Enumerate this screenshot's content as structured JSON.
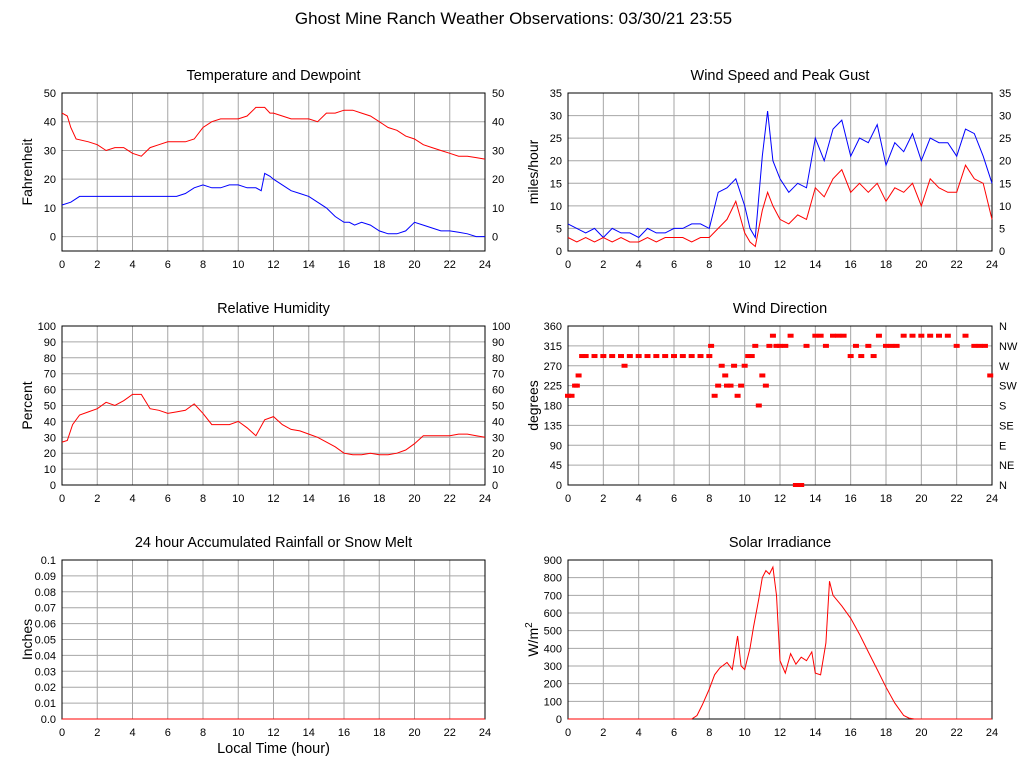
{
  "title": "Ghost Mine Ranch Weather Observations: 03/30/21 23:55",
  "colors": {
    "primary": "#ff0000",
    "secondary": "#0000ff",
    "grid": "#a6a6a6",
    "axis": "#000000"
  },
  "shared_x_ticks": [
    "0",
    "2",
    "4",
    "6",
    "8",
    "10",
    "12",
    "14",
    "16",
    "18",
    "20",
    "22",
    "24"
  ],
  "chart_data": [
    {
      "id": "temperature",
      "type": "line",
      "title": "Temperature and Dewpoint",
      "xlabel": "",
      "ylabel": "Fahrenheit",
      "xlim": [
        0,
        24
      ],
      "ylim": [
        -5,
        50
      ],
      "yticks": [
        "0",
        "10",
        "20",
        "30",
        "40",
        "50"
      ],
      "right_ticks": [
        "0",
        "10",
        "20",
        "30",
        "40",
        "50"
      ],
      "grid": true,
      "series": [
        {
          "color": "#ff0000",
          "x": [
            0,
            0.3,
            0.5,
            0.8,
            1.5,
            2,
            2.5,
            3,
            3.5,
            4,
            4.5,
            5,
            5.5,
            6,
            6.5,
            7,
            7.5,
            8,
            8.5,
            9,
            9.5,
            10,
            10.5,
            11,
            11.5,
            11.8,
            12,
            12.5,
            13,
            13.5,
            14,
            14.5,
            15,
            15.5,
            16,
            16.5,
            17,
            17.5,
            18,
            18.5,
            19,
            19.5,
            20,
            20.5,
            21,
            21.5,
            22,
            22.5,
            23,
            23.5,
            24
          ],
          "y": [
            43,
            42,
            38,
            34,
            33,
            32,
            30,
            31,
            31,
            29,
            28,
            31,
            32,
            33,
            33,
            33,
            34,
            38,
            40,
            41,
            41,
            41,
            42,
            45,
            45,
            43,
            43,
            42,
            41,
            41,
            41,
            40,
            43,
            43,
            44,
            44,
            43,
            42,
            40,
            38,
            37,
            35,
            34,
            32,
            31,
            30,
            29,
            28,
            28,
            27.5,
            27
          ]
        },
        {
          "color": "#0000ff",
          "x": [
            0,
            0.5,
            1,
            1.5,
            2,
            2.5,
            3,
            3.5,
            4,
            4.5,
            5,
            5.5,
            6,
            6.5,
            7,
            7.5,
            8,
            8.5,
            9,
            9.5,
            10,
            10.5,
            11,
            11.3,
            11.5,
            11.8,
            12,
            12.5,
            13,
            13.5,
            14,
            14.5,
            15,
            15.5,
            16,
            16.3,
            16.6,
            17,
            17.5,
            18,
            18.5,
            19,
            19.5,
            20,
            20.5,
            21,
            21.5,
            22,
            22.5,
            23,
            23.5,
            24
          ],
          "y": [
            11,
            12,
            14,
            14,
            14,
            14,
            14,
            14,
            14,
            14,
            14,
            14,
            14,
            14,
            15,
            17,
            18,
            17,
            17,
            18,
            18,
            17,
            17,
            16,
            22,
            21,
            20,
            18,
            16,
            15,
            14,
            12,
            10,
            7,
            5,
            5,
            4,
            5,
            4,
            2,
            1,
            1,
            2,
            5,
            4,
            3,
            2,
            2,
            1.5,
            1,
            0,
            0
          ]
        }
      ]
    },
    {
      "id": "wind-speed",
      "type": "line",
      "title": "Wind Speed and Peak Gust",
      "xlabel": "",
      "ylabel": "miles/hour",
      "xlim": [
        0,
        24
      ],
      "ylim": [
        0,
        35
      ],
      "yticks": [
        "0",
        "5",
        "10",
        "15",
        "20",
        "25",
        "30",
        "35"
      ],
      "right_ticks": [
        "0",
        "5",
        "10",
        "15",
        "20",
        "25",
        "30",
        "35"
      ],
      "grid": true,
      "series": [
        {
          "color": "#0000ff",
          "x": [
            0,
            0.5,
            1,
            1.5,
            2,
            2.5,
            3,
            3.5,
            4,
            4.5,
            5,
            5.5,
            6,
            6.5,
            7,
            7.5,
            8,
            8.5,
            9,
            9.5,
            10,
            10.3,
            10.6,
            11,
            11.3,
            11.6,
            12,
            12.5,
            13,
            13.5,
            14,
            14.5,
            15,
            15.5,
            16,
            16.5,
            17,
            17.5,
            18,
            18.5,
            19,
            19.5,
            20,
            20.5,
            21,
            21.5,
            22,
            22.5,
            23,
            23.5,
            24
          ],
          "y": [
            6,
            5,
            4,
            5,
            3,
            5,
            4,
            4,
            3,
            5,
            4,
            4,
            5,
            5,
            6,
            6,
            5,
            13,
            14,
            16,
            10,
            5,
            3,
            21,
            31,
            20,
            16,
            13,
            15,
            14,
            25,
            20,
            27,
            29,
            21,
            25,
            24,
            28,
            19,
            24,
            22,
            26,
            20,
            25,
            24,
            24,
            21,
            27,
            26,
            21,
            15
          ]
        },
        {
          "color": "#ff0000",
          "x": [
            0,
            0.5,
            1,
            1.5,
            2,
            2.5,
            3,
            3.5,
            4,
            4.5,
            5,
            5.5,
            6,
            6.5,
            7,
            7.5,
            8,
            8.5,
            9,
            9.5,
            10,
            10.3,
            10.6,
            11,
            11.3,
            11.6,
            12,
            12.5,
            13,
            13.5,
            14,
            14.5,
            15,
            15.5,
            16,
            16.5,
            17,
            17.5,
            18,
            18.5,
            19,
            19.5,
            20,
            20.5,
            21,
            21.5,
            22,
            22.5,
            23,
            23.5,
            24
          ],
          "y": [
            3,
            2,
            3,
            2,
            3,
            2,
            3,
            2,
            2,
            3,
            2,
            3,
            3,
            3,
            2,
            3,
            3,
            5,
            7,
            11,
            4,
            2,
            1,
            9,
            13,
            10,
            7,
            6,
            8,
            7,
            14,
            12,
            16,
            18,
            13,
            15,
            13,
            15,
            11,
            14,
            13,
            15,
            10,
            16,
            14,
            13,
            13,
            19,
            16,
            15,
            7
          ]
        }
      ]
    },
    {
      "id": "humidity",
      "type": "line",
      "title": "Relative Humidity",
      "xlabel": "",
      "ylabel": "Percent",
      "xlim": [
        0,
        24
      ],
      "ylim": [
        0,
        100
      ],
      "yticks": [
        "0",
        "10",
        "20",
        "30",
        "40",
        "50",
        "60",
        "70",
        "80",
        "90",
        "100"
      ],
      "right_ticks": [
        "0",
        "10",
        "20",
        "30",
        "40",
        "50",
        "60",
        "70",
        "80",
        "90",
        "100"
      ],
      "grid": true,
      "series": [
        {
          "color": "#ff0000",
          "x": [
            0,
            0.3,
            0.6,
            1,
            1.5,
            2,
            2.5,
            3,
            3.5,
            4,
            4.5,
            5,
            5.5,
            6,
            6.5,
            7,
            7.5,
            8,
            8.5,
            9,
            9.5,
            10,
            10.5,
            11,
            11.5,
            12,
            12.5,
            13,
            13.5,
            14,
            14.5,
            15,
            15.5,
            16,
            16.5,
            17,
            17.5,
            18,
            18.5,
            19,
            19.5,
            20,
            20.5,
            21,
            21.5,
            22,
            22.5,
            23,
            23.5,
            24
          ],
          "y": [
            27,
            28,
            38,
            44,
            46,
            48,
            52,
            50,
            53,
            57,
            57,
            48,
            47,
            45,
            46,
            47,
            51,
            45,
            38,
            38,
            38,
            40,
            36,
            31,
            41,
            43,
            38,
            35,
            34,
            32,
            30,
            27,
            24,
            20,
            19,
            19,
            20,
            19,
            19,
            20,
            22,
            26,
            31,
            31,
            31,
            31,
            32,
            32,
            31,
            30
          ]
        }
      ]
    },
    {
      "id": "wind-direction",
      "type": "scatter",
      "title": "Wind Direction",
      "xlabel": "",
      "ylabel": "degrees",
      "xlim": [
        0,
        24
      ],
      "ylim": [
        0,
        360
      ],
      "yticks": [
        "0",
        "45",
        "90",
        "135",
        "180",
        "225",
        "270",
        "315",
        "360"
      ],
      "right_ticks": [
        "N",
        "NE",
        "E",
        "SE",
        "S",
        "SW",
        "W",
        "NW",
        "N"
      ],
      "grid": true,
      "series": [
        {
          "color": "#ff0000",
          "x": [
            0,
            0.2,
            0.4,
            0.5,
            0.6,
            0.8,
            1,
            1.5,
            2,
            2.5,
            3,
            3.2,
            3.5,
            4,
            4.5,
            5,
            5.5,
            6,
            6.5,
            7,
            7.5,
            8,
            8.1,
            8.3,
            8.5,
            8.7,
            8.9,
            9.0,
            9.2,
            9.4,
            9.6,
            9.8,
            10.0,
            10.2,
            10.4,
            10.6,
            10.8,
            11.0,
            11.2,
            11.4,
            11.6,
            11.8,
            12.0,
            12.3,
            12.6,
            12.9,
            13.0,
            13.2,
            13.5,
            14.0,
            14.3,
            14.6,
            15.0,
            15.3,
            15.6,
            16.0,
            16.3,
            16.6,
            17.0,
            17.3,
            17.6,
            18.0,
            18.3,
            18.6,
            19.0,
            19.5,
            20.0,
            20.5,
            21.0,
            21.5,
            22.0,
            22.5,
            23.0,
            23.3,
            23.6,
            23.9
          ],
          "y": [
            202,
            202,
            225,
            225,
            248,
            292,
            292,
            292,
            292,
            292,
            292,
            270,
            292,
            292,
            292,
            292,
            292,
            292,
            292,
            292,
            292,
            292,
            315,
            202,
            225,
            270,
            248,
            225,
            225,
            270,
            202,
            225,
            270,
            292,
            292,
            315,
            180,
            248,
            225,
            315,
            338,
            315,
            315,
            315,
            338,
            0,
            0,
            0,
            315,
            338,
            338,
            315,
            338,
            338,
            338,
            292,
            315,
            292,
            315,
            292,
            338,
            315,
            315,
            315,
            338,
            338,
            338,
            338,
            338,
            338,
            315,
            338,
            315,
            315,
            315,
            248
          ]
        }
      ]
    },
    {
      "id": "rainfall",
      "type": "line",
      "title": "24 hour Accumulated Rainfall or Snow Melt",
      "xlabel": "Local Time (hour)",
      "ylabel": "Inches",
      "xlim": [
        0,
        24
      ],
      "ylim": [
        0,
        0.1
      ],
      "yticks": [
        "0.0",
        "0.01",
        "0.02",
        "0.03",
        "0.04",
        "0.05",
        "0.06",
        "0.07",
        "0.08",
        "0.09",
        "0.1"
      ],
      "right_ticks": [],
      "grid": true,
      "series": [
        {
          "color": "#ff0000",
          "x": [
            0,
            24
          ],
          "y": [
            0,
            0
          ]
        }
      ]
    },
    {
      "id": "solar",
      "type": "line",
      "title": "Solar Irradiance",
      "xlabel": "",
      "ylabel": "W/m",
      "ylabel_sup": "2",
      "xlim": [
        0,
        24
      ],
      "ylim": [
        0,
        900
      ],
      "yticks": [
        "0",
        "100",
        "200",
        "300",
        "400",
        "500",
        "600",
        "700",
        "800",
        "900"
      ],
      "right_ticks": [],
      "grid": true,
      "series": [
        {
          "color": "#ff0000",
          "x": [
            0,
            7,
            7.3,
            7.6,
            8,
            8.3,
            8.6,
            9,
            9.3,
            9.6,
            9.8,
            10,
            10.3,
            10.5,
            10.8,
            11,
            11.2,
            11.4,
            11.6,
            11.8,
            12,
            12.3,
            12.6,
            12.9,
            13.2,
            13.5,
            13.8,
            14,
            14.3,
            14.6,
            14.8,
            15,
            15.5,
            16,
            16.5,
            17,
            17.5,
            18,
            18.5,
            19,
            19.3,
            19.6,
            20,
            24
          ],
          "y": [
            0,
            0,
            20,
            80,
            170,
            250,
            290,
            320,
            280,
            470,
            300,
            280,
            400,
            520,
            680,
            800,
            840,
            820,
            860,
            700,
            330,
            260,
            370,
            310,
            350,
            330,
            380,
            260,
            250,
            430,
            780,
            700,
            640,
            570,
            480,
            380,
            280,
            180,
            90,
            20,
            5,
            0,
            0,
            0
          ]
        }
      ]
    }
  ]
}
